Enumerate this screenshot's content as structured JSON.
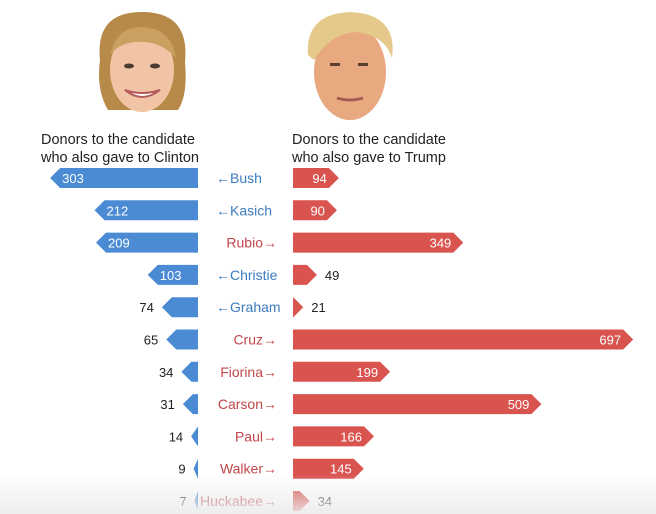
{
  "chart_data": {
    "type": "bar",
    "orientation": "horizontal-butterfly",
    "left_title": [
      "Donors to the candidate",
      "who also gave to Clinton"
    ],
    "right_title": [
      "Donors to the candidate",
      "who also gave to Trump"
    ],
    "categories": [
      "Bush",
      "Kasich",
      "Rubio",
      "Christie",
      "Graham",
      "Cruz",
      "Fiorina",
      "Carson",
      "Paul",
      "Walker",
      "Huckabee"
    ],
    "category_labels": [
      "←Bush",
      "←Kasich",
      "Rubio→",
      "←Christie",
      "←Graham",
      "Cruz→",
      "Fiorina→",
      "Carson→",
      "Paul→",
      "Walker→",
      "Huckabee→"
    ],
    "category_side": [
      "clinton",
      "clinton",
      "trump",
      "clinton",
      "clinton",
      "trump",
      "trump",
      "trump",
      "trump",
      "trump",
      "trump"
    ],
    "series": [
      {
        "name": "Clinton",
        "color": "#4a8bd4",
        "values": [
          303,
          212,
          209,
          103,
          74,
          65,
          34,
          31,
          14,
          9,
          7
        ]
      },
      {
        "name": "Trump",
        "color": "#d9534f",
        "values": [
          94,
          90,
          349,
          49,
          21,
          697,
          199,
          509,
          166,
          145,
          34
        ]
      }
    ],
    "colors": {
      "clinton_label": "#3b7bbf",
      "trump_label": "#c0474a"
    }
  }
}
